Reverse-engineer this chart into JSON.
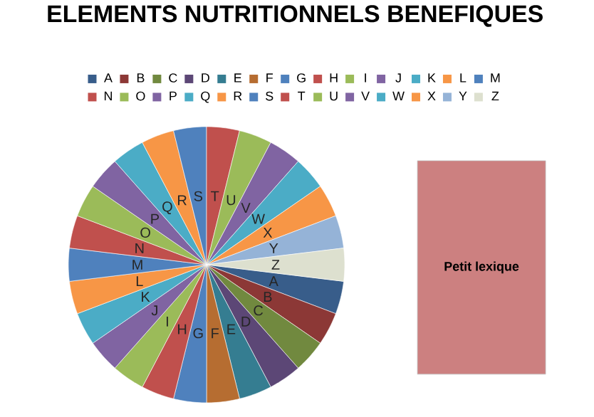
{
  "chart_data": {
    "type": "pie",
    "title": "ELEMENTS NUTRITIONNELS BENEFIQUES",
    "categories": [
      "A",
      "B",
      "C",
      "D",
      "E",
      "F",
      "G",
      "H",
      "I",
      "J",
      "K",
      "L",
      "M",
      "N",
      "O",
      "P",
      "Q",
      "R",
      "S",
      "T",
      "U",
      "V",
      "W",
      "X",
      "Y",
      "Z"
    ],
    "values": [
      3.846,
      3.846,
      3.846,
      3.846,
      3.846,
      3.846,
      3.846,
      3.846,
      3.846,
      3.846,
      3.846,
      3.846,
      3.846,
      3.846,
      3.846,
      3.846,
      3.846,
      3.846,
      3.846,
      3.846,
      3.846,
      3.846,
      3.846,
      3.846,
      3.846,
      3.846
    ],
    "colors": [
      "#385d8a",
      "#8c3836",
      "#71893f",
      "#5c4776",
      "#357d91",
      "#b66d31",
      "#4f81bd",
      "#c0504d",
      "#9bbb59",
      "#8064a2",
      "#4bacc6",
      "#f79646",
      "#4f81bd",
      "#c0504d",
      "#9bbb59",
      "#8064a2",
      "#4bacc6",
      "#f79646",
      "#4f81bd",
      "#c0504d",
      "#9bbb59",
      "#8064a2",
      "#4bacc6",
      "#f79646",
      "#95b3d7",
      "#dde0cf"
    ],
    "legend": "top",
    "annotations": [
      "Petit lexique"
    ]
  }
}
